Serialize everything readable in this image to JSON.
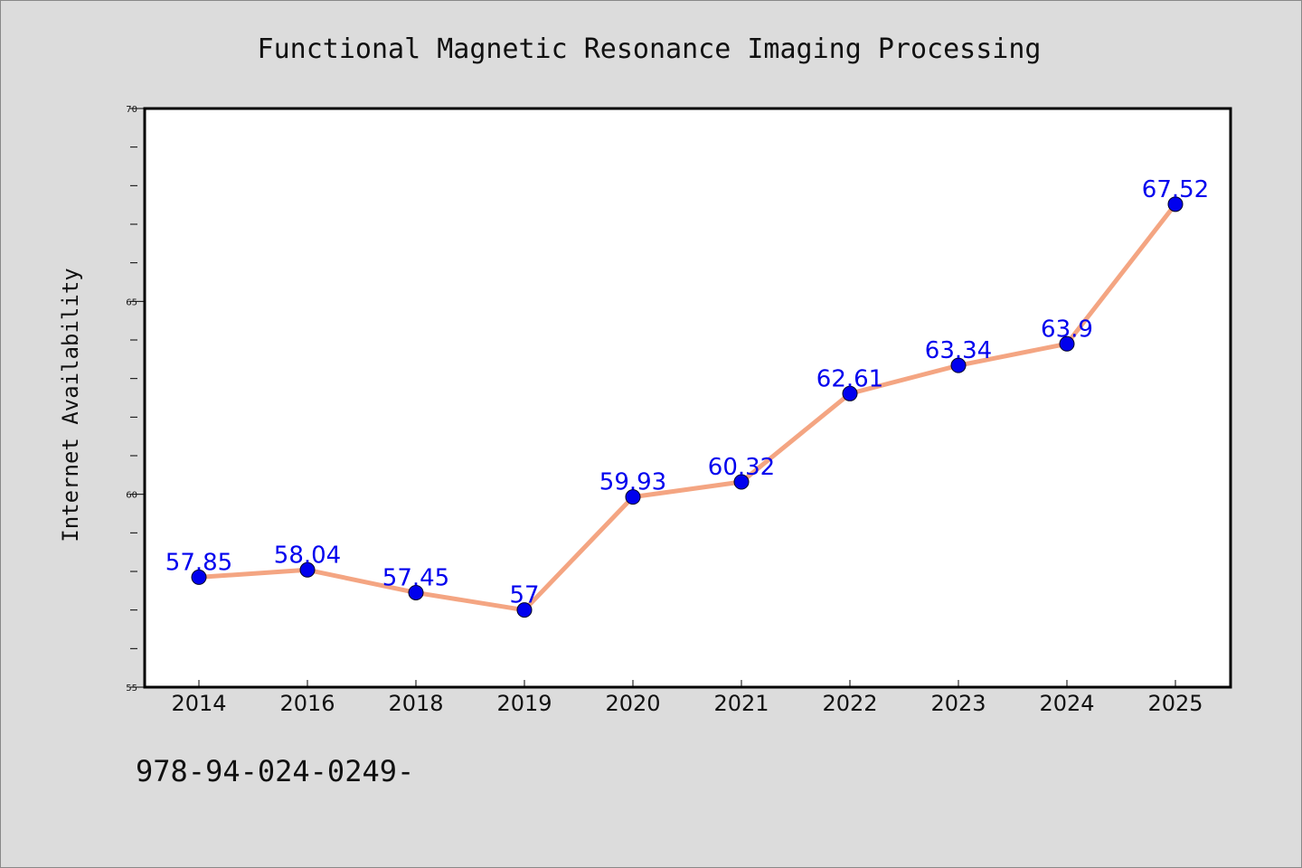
{
  "chart_data": {
    "type": "line",
    "title": "Functional Magnetic Resonance Imaging Processing",
    "xlabel": "",
    "ylabel": "Internet Availability",
    "categories": [
      "2014",
      "2016",
      "2018",
      "2019",
      "2020",
      "2021",
      "2022",
      "2023",
      "2024",
      "2025"
    ],
    "values": [
      57.85,
      58.04,
      57.45,
      57,
      59.93,
      60.32,
      62.61,
      63.34,
      63.9,
      67.52
    ],
    "value_labels": [
      "57.85",
      "58.04",
      "57.45",
      "57",
      "59.93",
      "60.32",
      "62.61",
      "63.34",
      "63.9",
      "67.52"
    ],
    "ylim": [
      55,
      70
    ],
    "yticks": [
      55,
      60,
      65,
      70
    ],
    "grid": false,
    "colors": {
      "line": "#f4a582",
      "marker": "#0000ee",
      "label": "#0000ee"
    }
  },
  "footer": {
    "text": "978-94-024-0249-"
  }
}
